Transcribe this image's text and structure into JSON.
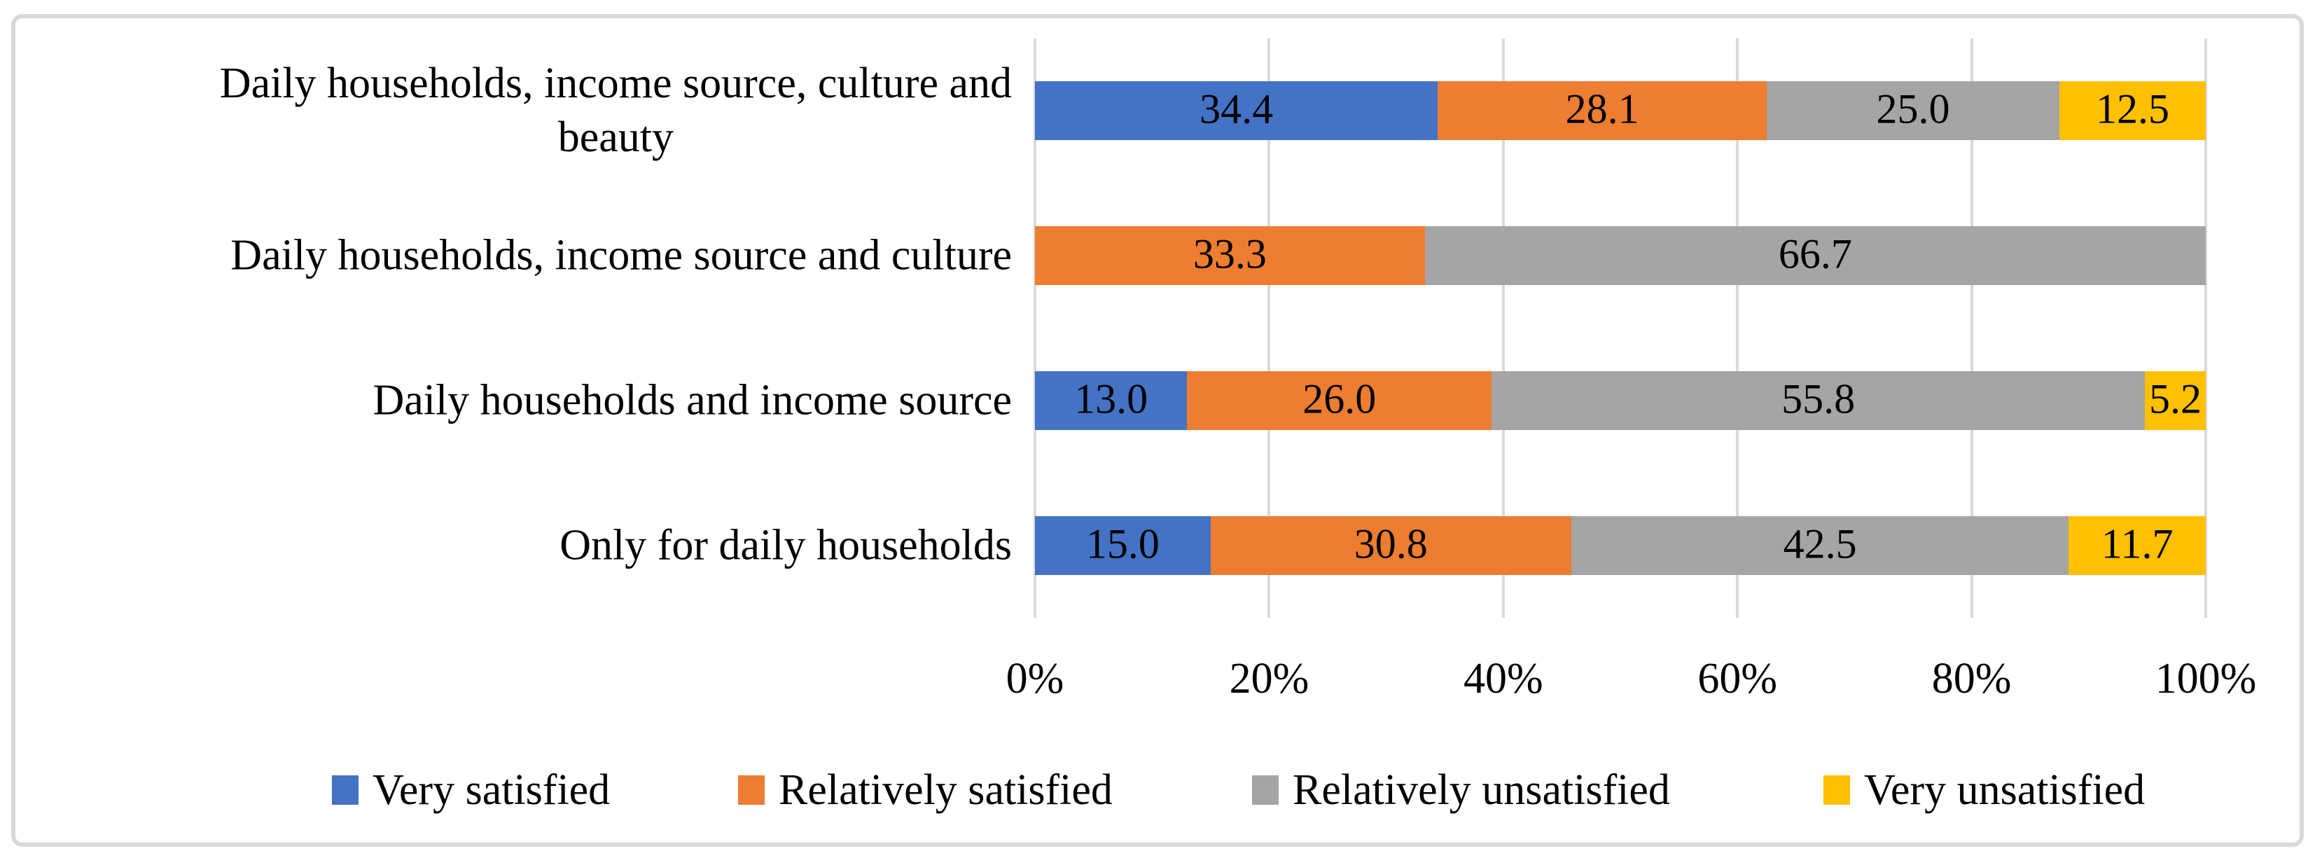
{
  "chart_data": {
    "type": "bar",
    "orientation": "horizontal",
    "stacked": true,
    "title": "",
    "xlabel": "",
    "ylabel": "",
    "categories": [
      "Daily households, income source, culture and beauty",
      "Daily households, income source and culture",
      "Daily households and income source",
      "Only for daily households"
    ],
    "category_display_lines": [
      [
        "Daily households, income source, culture and",
        "beauty"
      ],
      [
        "Daily households, income source and culture"
      ],
      [
        "Daily households and income source"
      ],
      [
        "Only for daily households"
      ]
    ],
    "series": [
      {
        "name": "Very satisfied",
        "color": "#4472c4",
        "values": [
          34.4,
          0,
          13.0,
          15.0
        ]
      },
      {
        "name": "Relatively satisfied",
        "color": "#ed7d31",
        "values": [
          28.1,
          33.3,
          26.0,
          30.8
        ]
      },
      {
        "name": "Relatively unsatisfied",
        "color": "#a5a5a5",
        "values": [
          25.0,
          66.7,
          55.8,
          42.5
        ]
      },
      {
        "name": "Very unsatisfied",
        "color": "#ffc000",
        "values": [
          12.5,
          0,
          5.2,
          11.7
        ]
      }
    ],
    "data_labels": {
      "visible": true,
      "decimals": 1,
      "color": "#000000"
    },
    "x_axis": {
      "min": 0,
      "max": 100,
      "tick_labels": [
        "0%",
        "20%",
        "40%",
        "60%",
        "80%",
        "100%"
      ]
    },
    "grid": {
      "vertical": true,
      "horizontal": false,
      "color": "#d9d9d9"
    },
    "legend_position": "bottom",
    "frame_border_color": "#d9d9d9",
    "background_color": "#ffffff"
  }
}
